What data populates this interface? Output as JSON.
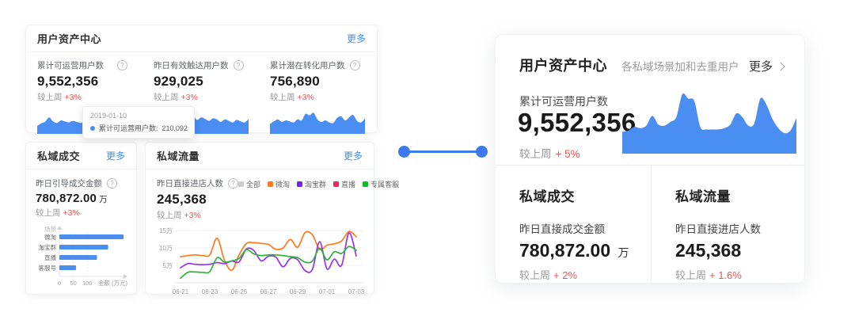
{
  "colors": {
    "accent_blue": "#4a8ef2",
    "link_blue": "#478cf2",
    "change_red": "#f25050",
    "connector_blue": "#3b7af0"
  },
  "assets_card": {
    "title": "用户资产中心",
    "more_label": "更多",
    "metrics": [
      {
        "label": "累计可运营用户数",
        "value": "9,552,356",
        "compare_label": "较上周",
        "compare_value": "+3%"
      },
      {
        "label": "昨日有效触达用户数",
        "value": "929,025",
        "compare_label": "较上周",
        "compare_value": "+3%"
      },
      {
        "label": "累计潜在转化用户数",
        "value": "756,890",
        "compare_label": "较上周",
        "compare_value": "+3%"
      }
    ],
    "tooltip": {
      "date": "2019-01-10",
      "series_label": "累计可运营用户数:",
      "value": "210,092"
    }
  },
  "deal_card": {
    "title": "私域成交",
    "more_label": "更多",
    "metric_label": "昨日引导成交金额",
    "value": "780,872.00",
    "unit": "万",
    "compare_label": "较上周",
    "compare_value": "+3%"
  },
  "traffic_card": {
    "title": "私域流量",
    "more_label": "更多",
    "metric_label": "昨日直接进店人数",
    "value": "245,368",
    "compare_label": "较上周",
    "compare_value": "+3%",
    "legend": [
      {
        "label": "全部",
        "color": "#c9ccd1"
      },
      {
        "label": "微淘",
        "color": "#ff7a1c"
      },
      {
        "label": "淘宝群",
        "color": "#7c1aff"
      },
      {
        "label": "直播",
        "color": "#ff1e62"
      },
      {
        "label": "专属客服",
        "color": "#0bbf20"
      }
    ]
  },
  "detail_card": {
    "title": "用户资产中心",
    "subtitle": "各私域场景加和去重用户",
    "more_label": "更多",
    "metric_label": "累计可运营用户数",
    "value": "9,552,356",
    "compare_label": "较上周",
    "compare_value": "+ 5%",
    "deal": {
      "title": "私域成交",
      "label": "昨日直接成交金额",
      "value": "780,872.00",
      "unit": "万",
      "compare_label": "较上周",
      "compare_value": "+ 2%"
    },
    "traffic": {
      "title": "私域流量",
      "label": "昨日直接进店人数",
      "value": "245,368",
      "compare_label": "较上周",
      "compare_value": "+ 1.6%"
    }
  },
  "chart_data": [
    {
      "id": "spark-operational-users",
      "type": "area",
      "color": "#4a8ef2",
      "ymax": 100,
      "values": [
        28,
        38,
        45,
        62,
        46,
        40,
        50,
        46,
        42,
        48,
        44,
        40,
        46,
        52,
        46,
        40,
        44,
        40,
        56,
        48,
        42,
        50,
        44,
        40,
        38
      ],
      "marker_index": 14
    },
    {
      "id": "spark-reached-users",
      "type": "area",
      "color": "#4a8ef2",
      "ymax": 100,
      "values": [
        35,
        44,
        40,
        50,
        46,
        52,
        48,
        60,
        55,
        88,
        70,
        52,
        62,
        56,
        48,
        58,
        54,
        44,
        54,
        48,
        42,
        52,
        46,
        42,
        55
      ]
    },
    {
      "id": "spark-potential-users",
      "type": "area",
      "color": "#4a8ef2",
      "ymax": 100,
      "values": [
        36,
        46,
        54,
        44,
        50,
        46,
        42,
        54,
        50,
        76,
        70,
        80,
        54,
        44,
        50,
        42,
        40,
        60,
        66,
        50,
        62,
        72,
        48,
        42,
        58
      ]
    },
    {
      "id": "bar-deal-by-scene",
      "type": "bar",
      "color": "#4a8ef2",
      "ylabel": "场景",
      "xlabel": "金额 (万元)",
      "categories": [
        "微淘",
        "淘宝群",
        "直播",
        "客服号"
      ],
      "values": [
        230,
        175,
        135,
        60
      ],
      "xticks": [
        0,
        50,
        100
      ],
      "xmax": 250
    },
    {
      "id": "line-store-visitors-trend",
      "type": "line",
      "ymax": 15,
      "x_labels": [
        "06-21",
        "06-23",
        "06-25",
        "06-27",
        "06-29",
        "07-01",
        "07-03"
      ],
      "yticks": [
        {
          "label": "5万",
          "value": 5
        },
        {
          "label": "10万",
          "value": 10
        },
        {
          "label": "15万",
          "value": 15
        }
      ],
      "series": [
        {
          "name": "微淘",
          "color": "#ff7a1c",
          "values": [
            7.5,
            7.8,
            8,
            7.8,
            8,
            12.8,
            6.5,
            3.6,
            8,
            11.3,
            11.5,
            11.3,
            11,
            9.6,
            10,
            12.4,
            10.2,
            14.4,
            13.8,
            9.6,
            10.8,
            11.2,
            12,
            14.7,
            13.2
          ]
        },
        {
          "name": "淘宝群",
          "color": "#9b30f0",
          "values": [
            4.3,
            5.5,
            5.3,
            5.2,
            5.3,
            5.8,
            5.5,
            6.2,
            6,
            9.7,
            9.3,
            6.3,
            7.6,
            7.4,
            4.6,
            7,
            6.6,
            3.5,
            3.8,
            11.8,
            4,
            6.8,
            5,
            14.3,
            7.7
          ]
        },
        {
          "name": "专属客服",
          "color": "#2eb33b",
          "values": [
            1.3,
            3,
            3.1,
            3,
            3.2,
            7.2,
            5.9,
            6.3,
            7,
            9.5,
            8.3,
            7.8,
            8,
            8,
            7.8,
            7.5,
            7.2,
            5.9,
            6.2,
            9.9,
            6.6,
            8.9,
            8.4,
            10.4,
            9.3
          ]
        }
      ]
    },
    {
      "id": "area-detail-operational-users",
      "type": "area",
      "color": "#4a8ef2",
      "ymax": 100,
      "values": [
        34,
        36,
        42,
        40,
        44,
        60,
        46,
        44,
        50,
        58,
        95,
        88,
        84,
        42,
        38,
        38,
        38,
        40,
        46,
        64,
        58,
        44,
        48,
        88,
        78,
        55,
        40,
        32,
        36,
        56
      ]
    }
  ]
}
